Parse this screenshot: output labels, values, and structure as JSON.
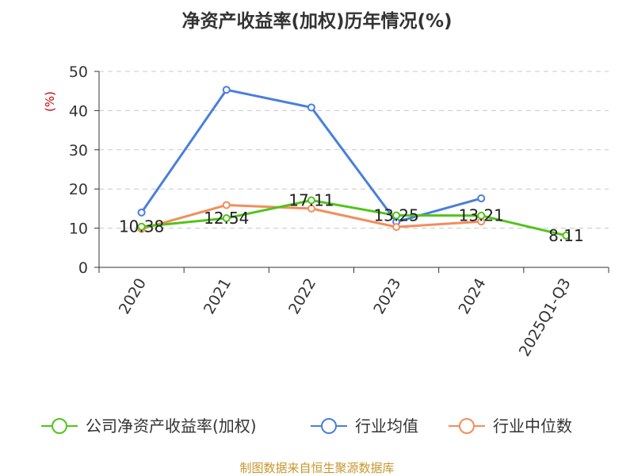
{
  "chart_data": {
    "type": "line",
    "title": "净资产收益率(加权)历年情况(%)",
    "ylabel": "(%)",
    "categories": [
      "2020",
      "2021",
      "2022",
      "2023",
      "2024",
      "2025Q1-Q3"
    ],
    "ylim": [
      0,
      50
    ],
    "yticks": [
      0,
      10,
      20,
      30,
      40,
      50
    ],
    "grid": true,
    "legend_position": "bottom",
    "series": [
      {
        "name": "公司净资产收益率(加权)",
        "color": "#52c41a",
        "values": [
          10.38,
          12.54,
          17.11,
          13.25,
          13.21,
          8.11
        ],
        "labels": [
          "10.38",
          "12.54",
          "17.11",
          "13.25",
          "13.21",
          "8.11"
        ]
      },
      {
        "name": "行业均值",
        "color": "#4a7fdc",
        "values": [
          14.0,
          45.3,
          40.8,
          11.6,
          17.6,
          null
        ]
      },
      {
        "name": "行业中位数",
        "color": "#f28e5b",
        "values": [
          9.8,
          15.9,
          15.0,
          10.3,
          11.7,
          null
        ]
      }
    ]
  },
  "source_text": "制图数据来自恒生聚源数据库"
}
